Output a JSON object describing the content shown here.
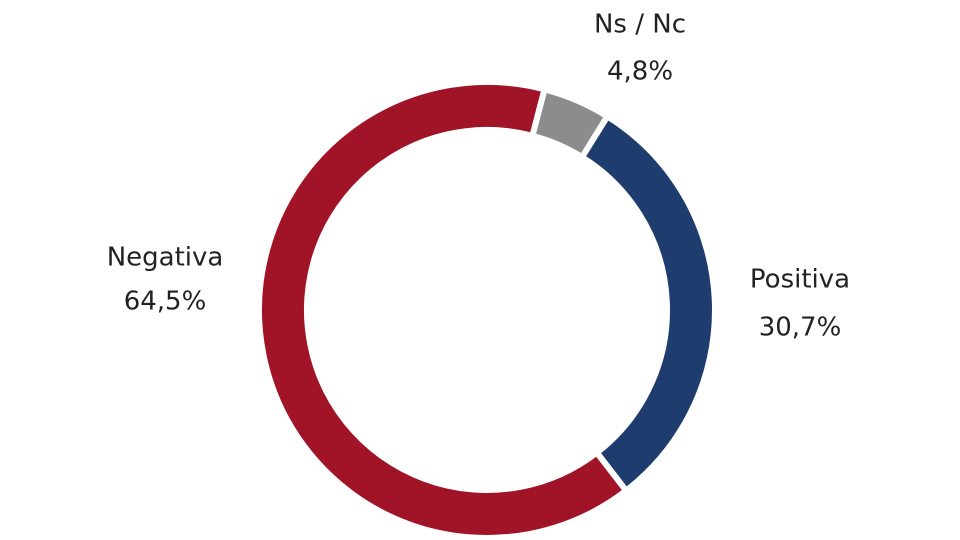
{
  "chart_data": {
    "type": "donut",
    "categories": [
      "Ns / Nc",
      "Positiva",
      "Negativa"
    ],
    "values": [
      4.8,
      30.7,
      64.5
    ],
    "value_labels": [
      "4,8%",
      "30,7%",
      "64,5%"
    ],
    "colors": [
      "#8c8c8c",
      "#1f3c6e",
      "#a11428"
    ]
  }
}
